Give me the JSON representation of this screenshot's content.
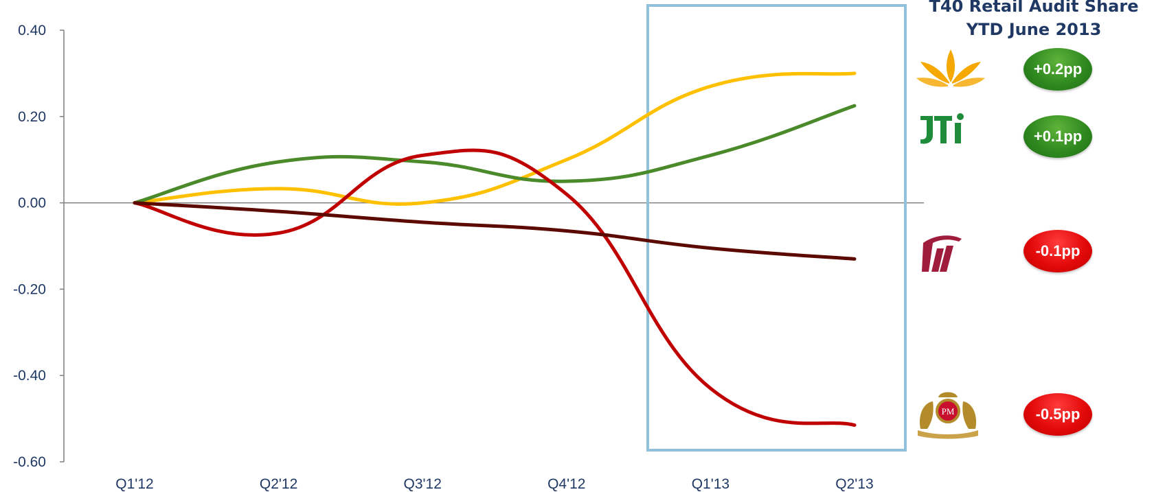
{
  "chart_data": {
    "type": "line",
    "title": "",
    "xlabel": "",
    "ylabel": "",
    "categories": [
      "Q1'12",
      "Q2'12",
      "Q3'12",
      "Q4'12",
      "Q1'13",
      "Q2'13"
    ],
    "ylim": [
      -0.6,
      0.4
    ],
    "yticks": [
      "0.40",
      "0.20",
      "0.00",
      "-0.20",
      "-0.40",
      "-0.60"
    ],
    "highlight_range": [
      "Q1'13",
      "Q2'13"
    ],
    "series": [
      {
        "color": "#ffc000",
        "values": [
          0.0,
          0.033,
          0.0,
          0.1,
          0.27,
          0.3
        ]
      },
      {
        "color": "#4a8a2a",
        "values": [
          0.0,
          0.095,
          0.095,
          0.05,
          0.11,
          0.225
        ]
      },
      {
        "color": "#c00000",
        "values": [
          0.0,
          -0.07,
          0.11,
          0.02,
          -0.43,
          -0.515
        ]
      },
      {
        "color": "#5c0a00",
        "values": [
          0.0,
          -0.02,
          -0.045,
          -0.065,
          -0.105,
          -0.13
        ]
      }
    ]
  },
  "side_panel": {
    "title_line1": "T40 Retail Audit Share",
    "title_line2": "YTD June 2013",
    "rows": [
      {
        "logo": "bat-leaf-logo",
        "change": "+0.2pp",
        "direction": "up"
      },
      {
        "logo": "jti-logo",
        "change": "+0.1pp",
        "direction": "up"
      },
      {
        "logo": "imperial-logo",
        "change": "-0.1pp",
        "direction": "down"
      },
      {
        "logo": "philip-morris-logo",
        "change": "-0.5pp",
        "direction": "down"
      }
    ]
  },
  "colors": {
    "axis": "#7f7f7f",
    "highlight_box": "#92c1dc",
    "tick_text": "#1f3864"
  }
}
